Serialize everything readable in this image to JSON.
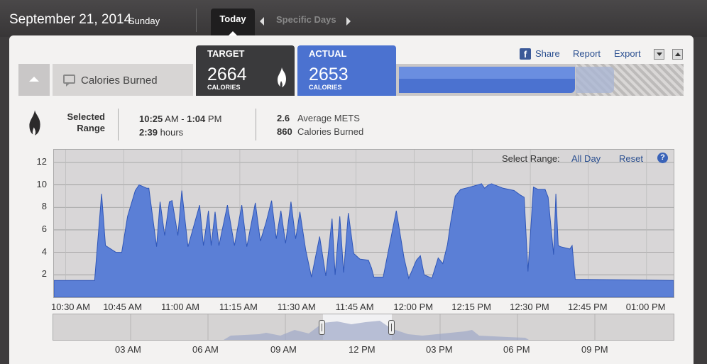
{
  "header": {
    "date": "September 21, 2014",
    "weekday": "Sunday",
    "tabs": [
      {
        "label": "Today",
        "active": true
      },
      {
        "label": "Specific Days",
        "active": false
      }
    ]
  },
  "metric": {
    "name": "Calories Burned",
    "target_title": "TARGET",
    "target_value": "2664",
    "target_unit": "CALORIES",
    "actual_title": "ACTUAL",
    "actual_value": "2653",
    "actual_unit": "CALORIES",
    "progress_fraction": 0.996
  },
  "actions": {
    "share": "Share",
    "report": "Report",
    "export": "Export"
  },
  "selected_range": {
    "label_line1": "Selected",
    "label_line2": "Range",
    "start_time": "10:25",
    "start_ampm": "AM",
    "dash": "-",
    "end_time": "1:04",
    "end_ampm": "PM",
    "duration": "2:39",
    "duration_unit": "hours",
    "avg_mets_value": "2.6",
    "avg_mets_label": "Average METS",
    "calories_value": "860",
    "calories_label": "Calories Burned"
  },
  "chart_controls": {
    "select_range_label": "Select Range:",
    "all_day": "All Day",
    "reset": "Reset",
    "help": "?"
  },
  "colors": {
    "accent_blue": "#4b72d0",
    "target_dark": "#3a3a3c",
    "area_fill": "#5b7fd6"
  },
  "chart_data": {
    "type": "area",
    "ylim": [
      0,
      13
    ],
    "yticks": [
      "2",
      "4",
      "6",
      "8",
      "10",
      "12"
    ],
    "xtick_labels": [
      "10:30 AM",
      "10:45 AM",
      "11:00 AM",
      "11:15 AM",
      "11:30 AM",
      "11:45 AM",
      "12:00 PM",
      "12:15 PM",
      "12:30 PM",
      "12:45 PM",
      "01:00 PM"
    ],
    "x_minutes_range": [
      627,
      787
    ],
    "grid": true,
    "points": [
      [
        627,
        1.5
      ],
      [
        637,
        1.5
      ],
      [
        637.5,
        1.5
      ],
      [
        639.3,
        9.2
      ],
      [
        640.3,
        4.6
      ],
      [
        643,
        4
      ],
      [
        644.5,
        4
      ],
      [
        646,
        7.2
      ],
      [
        648,
        9.5
      ],
      [
        649,
        10
      ],
      [
        651,
        9.7
      ],
      [
        651.5,
        9.7
      ],
      [
        653.5,
        4.5
      ],
      [
        654.4,
        8.5
      ],
      [
        655.6,
        5.5
      ],
      [
        656.8,
        8.5
      ],
      [
        657.5,
        8.6
      ],
      [
        659,
        5.5
      ],
      [
        660,
        9.5
      ],
      [
        661.6,
        4.5
      ],
      [
        664.6,
        8.2
      ],
      [
        665.6,
        4.6
      ],
      [
        666.9,
        7.7
      ],
      [
        667.6,
        4.6
      ],
      [
        668.6,
        7.6
      ],
      [
        669.6,
        4.6
      ],
      [
        671.8,
        8.2
      ],
      [
        673.6,
        4.6
      ],
      [
        675.5,
        8.2
      ],
      [
        676.8,
        4.5
      ],
      [
        679,
        8.4
      ],
      [
        680.3,
        5
      ],
      [
        681.8,
        6.7
      ],
      [
        683.2,
        8.6
      ],
      [
        684.4,
        5.2
      ],
      [
        685.6,
        7.7
      ],
      [
        686.8,
        4.8
      ],
      [
        688.2,
        8.5
      ],
      [
        689.4,
        5.2
      ],
      [
        690.5,
        7.6
      ],
      [
        692,
        4.2
      ],
      [
        693.5,
        1.8
      ],
      [
        695.6,
        5.4
      ],
      [
        697.2,
        1.9
      ],
      [
        698.8,
        7
      ],
      [
        699.6,
        2
      ],
      [
        700.8,
        7.2
      ],
      [
        701.8,
        2.2
      ],
      [
        703,
        7.5
      ],
      [
        704.4,
        3.9
      ],
      [
        706,
        3.4
      ],
      [
        708.2,
        3.3
      ],
      [
        709,
        2.6
      ],
      [
        709.6,
        1.8
      ],
      [
        712,
        1.8
      ],
      [
        713.4,
        4.2
      ],
      [
        715.4,
        7.7
      ],
      [
        717.4,
        3.5
      ],
      [
        718.6,
        1.7
      ],
      [
        720.6,
        3.3
      ],
      [
        721.6,
        3.7
      ],
      [
        722.6,
        2
      ],
      [
        724.6,
        1.7
      ],
      [
        726.2,
        3.5
      ],
      [
        727.4,
        3
      ],
      [
        728.6,
        4.7
      ],
      [
        729.4,
        6.6
      ],
      [
        730.6,
        9
      ],
      [
        732,
        9.6
      ],
      [
        734.4,
        9.8
      ],
      [
        737.4,
        10.1
      ],
      [
        738.2,
        9.7
      ],
      [
        739.2,
        10
      ],
      [
        740,
        10.1
      ],
      [
        743,
        9.7
      ],
      [
        745.8,
        9.5
      ],
      [
        747.4,
        9.1
      ],
      [
        748.4,
        8.9
      ],
      [
        749.4,
        2.3
      ],
      [
        750.8,
        9.8
      ],
      [
        752,
        9.6
      ],
      [
        753.8,
        9.6
      ],
      [
        754.6,
        8.9
      ],
      [
        756,
        3.8
      ],
      [
        756.6,
        9.2
      ],
      [
        757.2,
        4.6
      ],
      [
        757.8,
        4.5
      ],
      [
        760.2,
        4.3
      ],
      [
        760.8,
        4.6
      ],
      [
        761.6,
        1.6
      ],
      [
        787,
        1.5
      ]
    ]
  },
  "overview": {
    "tick_labels": [
      "03 AM",
      "06 AM",
      "09 AM",
      "12 PM",
      "03 PM",
      "06 PM",
      "09 PM"
    ]
  }
}
